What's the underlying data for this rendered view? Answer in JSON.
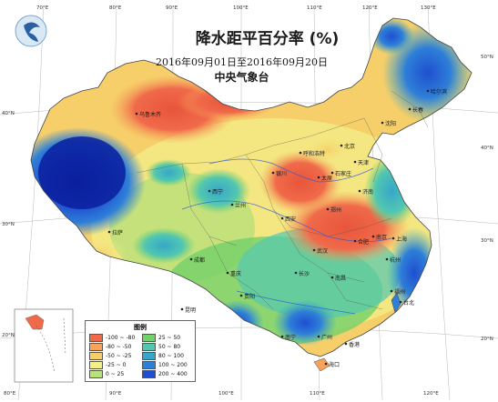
{
  "header": {
    "title": "降水距平百分率 (%)",
    "period": "2016年09月01日至2016年09月20日",
    "agency": "中央气象台"
  },
  "axes": {
    "top": [
      "70°E",
      "80°E",
      "90°E",
      "100°E",
      "110°E",
      "120°E",
      "130°E"
    ],
    "bottom": [
      "80°E",
      "90°E",
      "100°E",
      "110°E",
      "120°E"
    ],
    "left": [
      "40°N",
      "30°N",
      "20°N"
    ],
    "right": [
      "50°N",
      "40°N",
      "30°N",
      "20°N"
    ]
  },
  "legend": {
    "title": "图例",
    "items": [
      {
        "label": "-100 ~ -80",
        "color": "#f06a4a"
      },
      {
        "label": "-80 ~ -50",
        "color": "#f7a35c"
      },
      {
        "label": "-50 ~ -25",
        "color": "#f6cf6a"
      },
      {
        "label": "-25 ~ 0",
        "color": "#f3f08a"
      },
      {
        "label": "0 ~ 25",
        "color": "#b9e07a"
      },
      {
        "label": "25 ~ 50",
        "color": "#73d16a"
      },
      {
        "label": "50 ~ 80",
        "color": "#52c7b0"
      },
      {
        "label": "80 ~ 100",
        "color": "#36a7c9"
      },
      {
        "label": "100 ~ 200",
        "color": "#2e7fd8"
      },
      {
        "label": "200 ~ 400",
        "color": "#1f4fd0"
      },
      {
        "label": "> 400",
        "color": "#0b1f9e"
      }
    ]
  },
  "cities": [
    "乌鲁木齐",
    "呼和浩特",
    "北京",
    "太原",
    "银川",
    "西宁",
    "兰州",
    "西安",
    "郑州",
    "济南",
    "合肥",
    "南京",
    "上海",
    "杭州",
    "成都",
    "重庆",
    "贵阳",
    "昆明",
    "长沙",
    "南昌",
    "福州",
    "广州",
    "南宁",
    "香港",
    "海口",
    "台北",
    "哈尔滨",
    "长春",
    "沈阳",
    "石家庄",
    "天津",
    "武汉",
    "拉萨"
  ],
  "colors": {
    "border": "#444444",
    "river": "#2a5ad8",
    "ocean": "#ffffff"
  }
}
